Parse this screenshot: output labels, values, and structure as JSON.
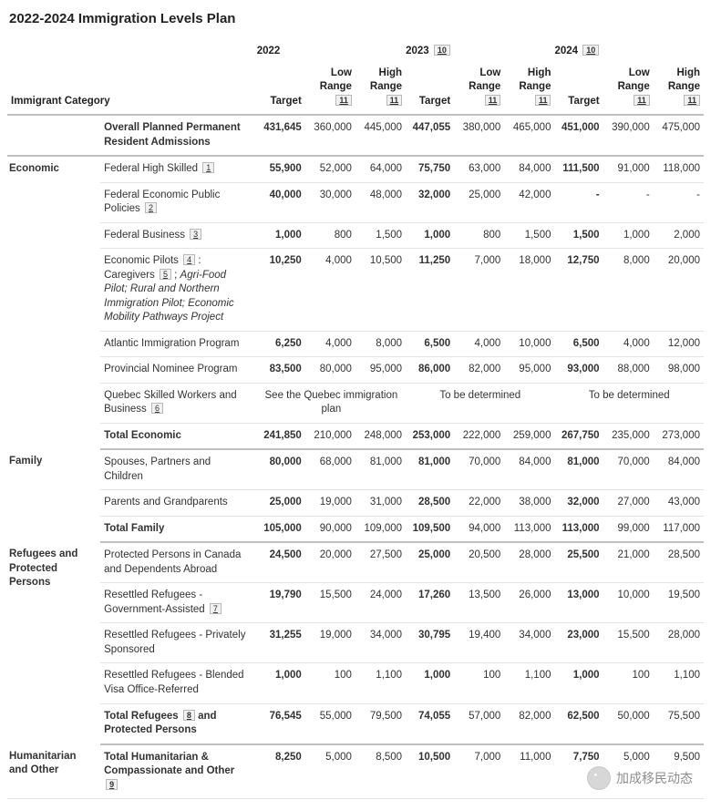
{
  "title": "2022-2024 Immigration Levels Plan",
  "header": {
    "category_label": "Immigrant Category",
    "years": [
      "2022",
      "2023",
      "2024"
    ],
    "year_fn": "10",
    "cols": {
      "target": "Target",
      "low": "Low Range",
      "high": "High Range",
      "range_fn": "11"
    }
  },
  "overall": {
    "label": "Overall Planned Permanent Resident Admissions",
    "y2022": {
      "t": "431,645",
      "lo": "360,000",
      "hi": "445,000"
    },
    "y2023": {
      "t": "447,055",
      "lo": "380,000",
      "hi": "465,000"
    },
    "y2024": {
      "t": "451,000",
      "lo": "390,000",
      "hi": "475,000"
    }
  },
  "groups": [
    {
      "name": "Economic",
      "rows": [
        {
          "label": "Federal High Skilled",
          "fn": "1",
          "y2022": {
            "t": "55,900",
            "lo": "52,000",
            "hi": "64,000"
          },
          "y2023": {
            "t": "75,750",
            "lo": "63,000",
            "hi": "84,000"
          },
          "y2024": {
            "t": "111,500",
            "lo": "91,000",
            "hi": "118,000"
          }
        },
        {
          "label": "Federal Economic Public Policies",
          "fn": "2",
          "y2022": {
            "t": "40,000",
            "lo": "30,000",
            "hi": "48,000"
          },
          "y2023": {
            "t": "32,000",
            "lo": "25,000",
            "hi": "42,000"
          },
          "y2024": {
            "t": "-",
            "lo": "-",
            "hi": "-"
          }
        },
        {
          "label": "Federal Business",
          "fn": "3",
          "y2022": {
            "t": "1,000",
            "lo": "800",
            "hi": "1,500"
          },
          "y2023": {
            "t": "1,000",
            "lo": "800",
            "hi": "1,500"
          },
          "y2024": {
            "t": "1,500",
            "lo": "1,000",
            "hi": "2,000"
          }
        },
        {
          "label_html": "Economic Pilots <span class='fn'>4</span> : Caregivers <span class='fn'>5</span> ; <span class='italic'>Agri-Food Pilot; Rural and Northern Immigration Pilot; Economic Mobility Pathways Project</span>",
          "y2022": {
            "t": "10,250",
            "lo": "4,000",
            "hi": "10,500"
          },
          "y2023": {
            "t": "11,250",
            "lo": "7,000",
            "hi": "18,000"
          },
          "y2024": {
            "t": "12,750",
            "lo": "8,000",
            "hi": "20,000"
          }
        },
        {
          "label": "Atlantic Immigration Program",
          "y2022": {
            "t": "6,250",
            "lo": "4,000",
            "hi": "8,000"
          },
          "y2023": {
            "t": "6,500",
            "lo": "4,000",
            "hi": "10,000"
          },
          "y2024": {
            "t": "6,500",
            "lo": "4,000",
            "hi": "12,000"
          }
        },
        {
          "label": "Provincial Nominee Program",
          "y2022": {
            "t": "83,500",
            "lo": "80,000",
            "hi": "95,000"
          },
          "y2023": {
            "t": "86,000",
            "lo": "82,000",
            "hi": "95,000"
          },
          "y2024": {
            "t": "93,000",
            "lo": "88,000",
            "hi": "98,000"
          }
        },
        {
          "label": "Quebec Skilled Workers and Business",
          "fn": "6",
          "span_row": true,
          "span2022": "See the Quebec immigration plan",
          "span2023": "To be determined",
          "span2024": "To be determined"
        }
      ],
      "total": {
        "label": "Total Economic",
        "y2022": {
          "t": "241,850",
          "lo": "210,000",
          "hi": "248,000"
        },
        "y2023": {
          "t": "253,000",
          "lo": "222,000",
          "hi": "259,000"
        },
        "y2024": {
          "t": "267,750",
          "lo": "235,000",
          "hi": "273,000"
        }
      }
    },
    {
      "name": "Family",
      "rows": [
        {
          "label": "Spouses, Partners and Children",
          "y2022": {
            "t": "80,000",
            "lo": "68,000",
            "hi": "81,000"
          },
          "y2023": {
            "t": "81,000",
            "lo": "70,000",
            "hi": "84,000"
          },
          "y2024": {
            "t": "81,000",
            "lo": "70,000",
            "hi": "84,000"
          }
        },
        {
          "label": "Parents and Grandparents",
          "y2022": {
            "t": "25,000",
            "lo": "19,000",
            "hi": "31,000"
          },
          "y2023": {
            "t": "28,500",
            "lo": "22,000",
            "hi": "38,000"
          },
          "y2024": {
            "t": "32,000",
            "lo": "27,000",
            "hi": "43,000"
          }
        }
      ],
      "total": {
        "label": "Total Family",
        "y2022": {
          "t": "105,000",
          "lo": "90,000",
          "hi": "109,000"
        },
        "y2023": {
          "t": "109,500",
          "lo": "94,000",
          "hi": "113,000"
        },
        "y2024": {
          "t": "113,000",
          "lo": "99,000",
          "hi": "117,000"
        }
      }
    },
    {
      "name": "Refugees and Protected Persons",
      "rows": [
        {
          "label": "Protected Persons in Canada and Dependents Abroad",
          "y2022": {
            "t": "24,500",
            "lo": "20,000",
            "hi": "27,500"
          },
          "y2023": {
            "t": "25,000",
            "lo": "20,500",
            "hi": "28,000"
          },
          "y2024": {
            "t": "25,500",
            "lo": "21,000",
            "hi": "28,500"
          }
        },
        {
          "label": "Resettled Refugees - Government-Assisted",
          "fn": "7",
          "y2022": {
            "t": "19,790",
            "lo": "15,500",
            "hi": "24,000"
          },
          "y2023": {
            "t": "17,260",
            "lo": "13,500",
            "hi": "26,000"
          },
          "y2024": {
            "t": "13,000",
            "lo": "10,000",
            "hi": "19,500"
          }
        },
        {
          "label": "Resettled Refugees - Privately Sponsored",
          "y2022": {
            "t": "31,255",
            "lo": "19,000",
            "hi": "34,000"
          },
          "y2023": {
            "t": "30,795",
            "lo": "19,400",
            "hi": "34,000"
          },
          "y2024": {
            "t": "23,000",
            "lo": "15,500",
            "hi": "28,000"
          }
        },
        {
          "label": "Resettled Refugees - Blended Visa Office-Referred",
          "y2022": {
            "t": "1,000",
            "lo": "100",
            "hi": "1,100"
          },
          "y2023": {
            "t": "1,000",
            "lo": "100",
            "hi": "1,100"
          },
          "y2024": {
            "t": "1,000",
            "lo": "100",
            "hi": "1,100"
          }
        }
      ],
      "total": {
        "label_html": "Total Refugees <span class='fn'>8</span> and Protected Persons",
        "y2022": {
          "t": "76,545",
          "lo": "55,000",
          "hi": "79,500"
        },
        "y2023": {
          "t": "74,055",
          "lo": "57,000",
          "hi": "82,000"
        },
        "y2024": {
          "t": "62,500",
          "lo": "50,000",
          "hi": "75,500"
        }
      }
    },
    {
      "name": "Humanitarian and Other",
      "rows": [],
      "total": {
        "label_html": "Total Humanitarian & Compassionate and Other <span class='fn'>9</span>",
        "y2022": {
          "t": "8,250",
          "lo": "5,000",
          "hi": "8,500"
        },
        "y2023": {
          "t": "10,500",
          "lo": "7,000",
          "hi": "11,000"
        },
        "y2024": {
          "t": "7,750",
          "lo": "5,000",
          "hi": "9,500"
        }
      }
    }
  ],
  "watermark": "加成移民动态",
  "style": {
    "border_color": "#bfbfbf",
    "row_border": "#e3e3e3",
    "fn_bg": "#f1f1f1",
    "text": "#333333"
  }
}
